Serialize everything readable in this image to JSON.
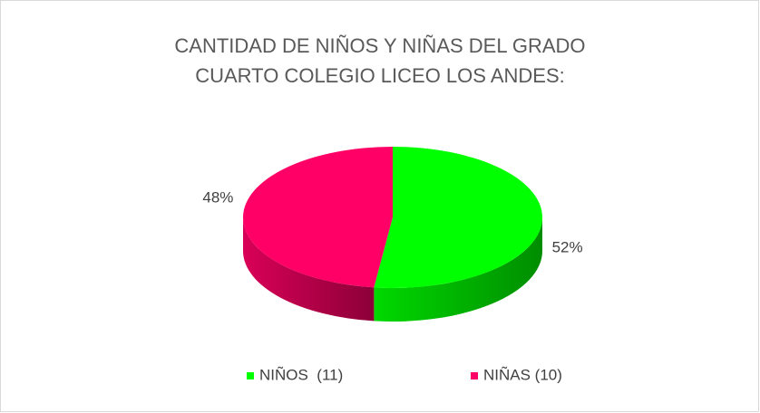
{
  "chart_data": {
    "type": "pie3d",
    "title": "CANTIDAD DE NIÑOS Y NIÑAS DEL GRADO CUARTO COLEGIO LICEO LOS ANDES:",
    "categories": [
      "NIÑOS  (11)",
      "NIÑAS (10)"
    ],
    "values": [
      52,
      48
    ],
    "value_labels": [
      "52%",
      "48%"
    ],
    "colors": [
      "#00ff00",
      "#ff0066"
    ],
    "legend": "bottom"
  }
}
